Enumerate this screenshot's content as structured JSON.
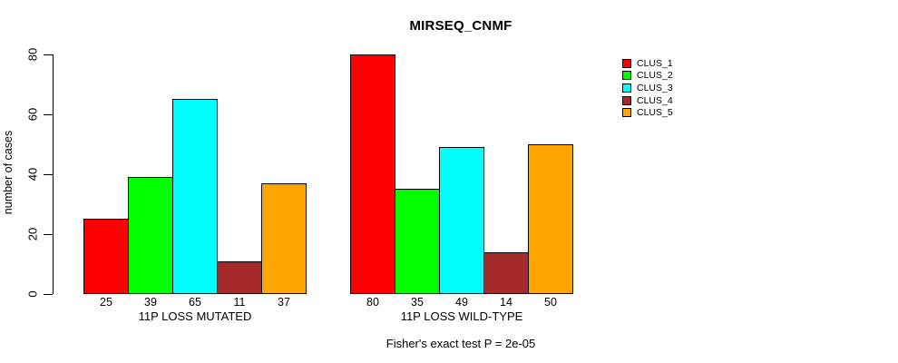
{
  "chart_data": {
    "type": "bar",
    "title": "MIRSEQ_CNMF",
    "ylabel": "number of cases",
    "ylim": [
      0,
      80
    ],
    "yticks": [
      0,
      20,
      40,
      60,
      80
    ],
    "grid": false,
    "legend_position": "right",
    "categories": [
      "CLUS_1",
      "CLUS_2",
      "CLUS_3",
      "CLUS_4",
      "CLUS_5"
    ],
    "series_colors": [
      "#FF0000",
      "#00FF00",
      "#00FFFF",
      "#A52A2A",
      "#FFA500"
    ],
    "groups": [
      {
        "label": "11P LOSS MUTATED",
        "values": [
          25,
          39,
          65,
          11,
          37
        ]
      },
      {
        "label": "11P LOSS WILD-TYPE",
        "values": [
          80,
          35,
          49,
          14,
          50
        ]
      }
    ],
    "legend": [
      {
        "label": "CLUS_1",
        "color": "#FF0000"
      },
      {
        "label": "CLUS_2",
        "color": "#00FF00"
      },
      {
        "label": "CLUS_3",
        "color": "#00FFFF"
      },
      {
        "label": "CLUS_4",
        "color": "#A52A2A"
      },
      {
        "label": "CLUS_5",
        "color": "#FFA500"
      }
    ],
    "footnote": "Fisher's exact test P = 2e-05"
  }
}
